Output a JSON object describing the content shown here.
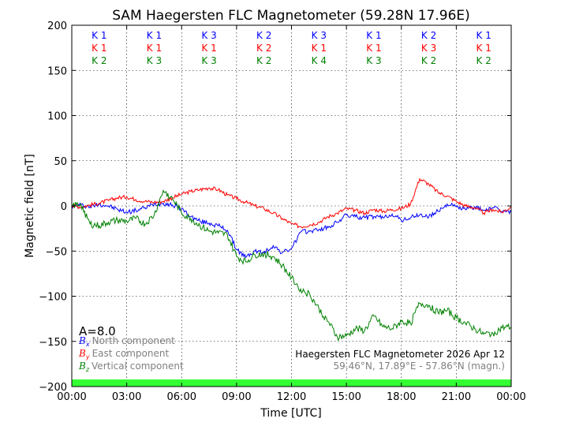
{
  "chart_data": {
    "type": "line",
    "title": "SAM Haegersten FLC Magnetometer (59.28N 17.96E)",
    "xlabel": "Time [UTC]",
    "ylabel": "Magnetic field [nT]",
    "xlim": [
      0,
      24
    ],
    "ylim": [
      -200,
      200
    ],
    "grid": true,
    "x_ticks": [
      0,
      3,
      6,
      9,
      12,
      15,
      18,
      21,
      24
    ],
    "x_tick_labels": [
      "00:00",
      "03:00",
      "06:00",
      "09:00",
      "12:00",
      "15:00",
      "18:00",
      "21:00",
      "00:00"
    ],
    "y_ticks": [
      -200,
      -150,
      -100,
      -50,
      0,
      50,
      100,
      150,
      200
    ],
    "y_tick_labels": [
      "−200",
      "−150",
      "−100",
      "−50",
      "0",
      "50",
      "100",
      "150",
      "200"
    ],
    "k_indices": {
      "bx": [
        "K 1",
        "K 1",
        "K 3",
        "K 2",
        "K 3",
        "K 1",
        "K 2",
        "K 1"
      ],
      "by": [
        "K 1",
        "K 1",
        "K 1",
        "K 2",
        "K 1",
        "K 1",
        "K 3",
        "K 1"
      ],
      "bz": [
        "K 2",
        "K 3",
        "K 3",
        "K 2",
        "K 4",
        "K 3",
        "K 2",
        "K 2"
      ]
    },
    "a_index": "A=8.0",
    "legend": [
      {
        "symbol": "B",
        "sub": "x",
        "label": "North component",
        "color": "#0000ff"
      },
      {
        "symbol": "B",
        "sub": "y",
        "label": "East component",
        "color": "#ff0000"
      },
      {
        "symbol": "B",
        "sub": "z",
        "label": "Vertical component",
        "color": "#008000"
      }
    ],
    "legend_position": "bottom-left",
    "info_line1": "Haegersten FLC Magnetometer 2026 Apr 12",
    "info_line2": "59.46°N, 17.89°E - 57.86°N (magn.)",
    "info_position": "bottom-right",
    "status_bar_color": "#33ff33",
    "series": [
      {
        "name": "Bx North component",
        "color": "#0000ff",
        "x": [
          0,
          0.5,
          1,
          1.5,
          2,
          2.5,
          3,
          3.5,
          4,
          4.5,
          5,
          5.5,
          6,
          6.5,
          7,
          7.5,
          8,
          8.5,
          9,
          9.5,
          10,
          10.5,
          11,
          11.5,
          12,
          12.5,
          13,
          13.5,
          14,
          14.5,
          15,
          15.5,
          16,
          16.5,
          17,
          17.5,
          18,
          18.5,
          19,
          19.5,
          20,
          20.5,
          21,
          21.5,
          22,
          22.5,
          23,
          23.5,
          24
        ],
        "values": [
          0,
          1,
          -1,
          2,
          0,
          -4,
          -7,
          -5,
          -2,
          2,
          3,
          1,
          -3,
          -12,
          -17,
          -19,
          -22,
          -27,
          -48,
          -57,
          -50,
          -52,
          -44,
          -52,
          -47,
          -29,
          -28,
          -26,
          -24,
          -18,
          -10,
          -12,
          -13,
          -12,
          -13,
          -9,
          -16,
          -13,
          -10,
          -12,
          -6,
          2,
          -1,
          -4,
          -1,
          -5,
          -2,
          -6,
          -7
        ]
      },
      {
        "name": "By East component",
        "color": "#ff0000",
        "x": [
          0,
          0.5,
          1,
          1.5,
          2,
          2.5,
          3,
          3.5,
          4,
          4.5,
          5,
          5.5,
          6,
          6.5,
          7,
          7.5,
          8,
          8.5,
          9,
          9.5,
          10,
          10.5,
          11,
          11.5,
          12,
          12.5,
          13,
          13.5,
          14,
          14.5,
          15,
          15.5,
          16,
          16.5,
          17,
          17.5,
          18,
          18.5,
          19,
          19.5,
          20,
          20.5,
          21,
          21.5,
          22,
          22.5,
          23,
          23.5,
          24
        ],
        "values": [
          0,
          -1,
          1,
          3,
          6,
          9,
          10,
          7,
          5,
          4,
          5,
          9,
          13,
          16,
          18,
          20,
          18,
          12,
          8,
          4,
          0,
          -3,
          -8,
          -14,
          -20,
          -23,
          -21,
          -18,
          -12,
          -8,
          -3,
          -5,
          -8,
          -4,
          -6,
          -4,
          -3,
          2,
          30,
          24,
          15,
          11,
          5,
          0,
          -2,
          -8,
          -4,
          -7,
          -1
        ]
      },
      {
        "name": "Bz Vertical component",
        "color": "#008000",
        "x": [
          0,
          0.5,
          1,
          1.5,
          2,
          2.5,
          3,
          3.5,
          4,
          4.5,
          5,
          5.5,
          6,
          6.5,
          7,
          7.5,
          8,
          8.5,
          9,
          9.5,
          10,
          10.5,
          11,
          11.5,
          12,
          12.5,
          13,
          13.5,
          14,
          14.5,
          15,
          15.5,
          16,
          16.5,
          17,
          17.5,
          18,
          18.5,
          19,
          19.5,
          20,
          20.5,
          21,
          21.5,
          22,
          22.5,
          23,
          23.5,
          24
        ],
        "values": [
          0,
          2,
          -20,
          -22,
          -18,
          -16,
          -17,
          -14,
          -20,
          -10,
          17,
          8,
          -8,
          -14,
          -22,
          -28,
          -30,
          -32,
          -56,
          -62,
          -54,
          -53,
          -56,
          -66,
          -80,
          -92,
          -98,
          -114,
          -128,
          -145,
          -144,
          -136,
          -138,
          -122,
          -134,
          -136,
          -128,
          -130,
          -108,
          -110,
          -118,
          -116,
          -124,
          -130,
          -136,
          -142,
          -141,
          -135,
          -134
        ]
      }
    ]
  }
}
